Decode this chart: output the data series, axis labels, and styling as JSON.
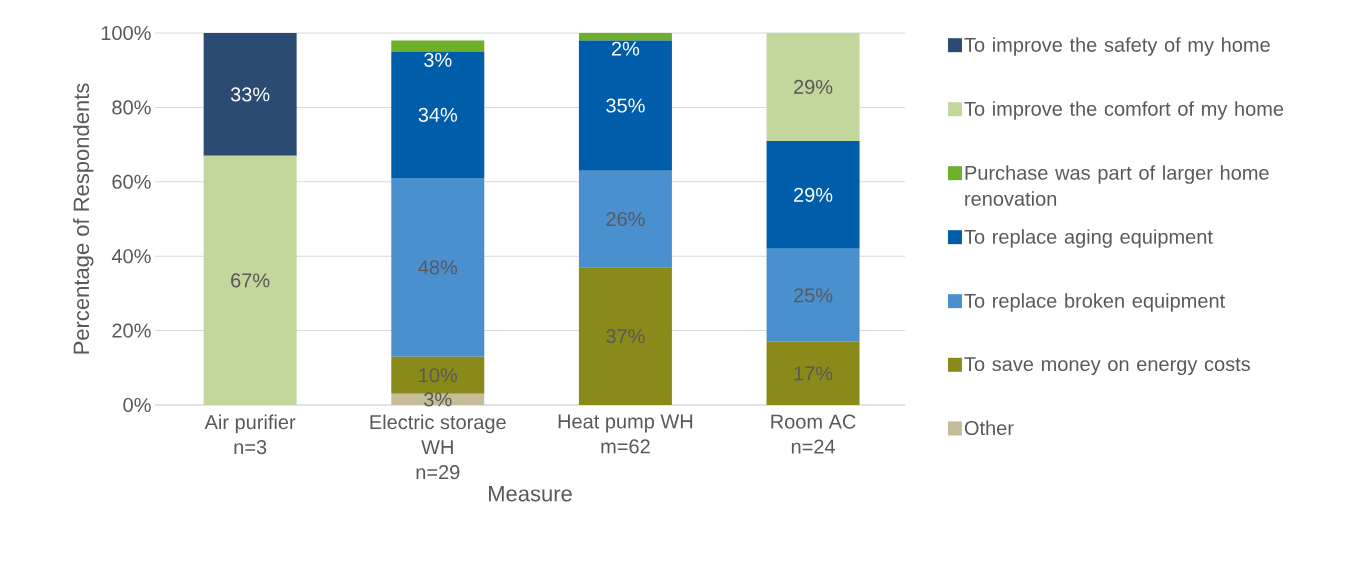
{
  "chart_data": {
    "type": "bar",
    "stacked": true,
    "xlabel": "Measure",
    "ylabel": "Percentage of Respondents",
    "categories": [
      "Air purifier\nn=3",
      "Electric storage\nWH\nn=29",
      "Heat pump WH\nm=62",
      "Room AC\nn=24"
    ],
    "ylim": [
      0,
      100
    ],
    "yticks": [
      {
        "value": 0,
        "label": "0%"
      },
      {
        "value": 20,
        "label": "20%"
      },
      {
        "value": 40,
        "label": "40%"
      },
      {
        "value": 60,
        "label": "60%"
      },
      {
        "value": 80,
        "label": "80%"
      },
      {
        "value": 100,
        "label": "100%"
      }
    ],
    "grid": "y",
    "legend": "right",
    "series": [
      {
        "name": "Other",
        "color": "#c4bd97",
        "values": [
          null,
          3,
          null,
          null
        ],
        "value_labels": [
          null,
          "3%",
          null,
          null
        ]
      },
      {
        "name": "To save money on energy costs",
        "color": "#8a8a1a",
        "values": [
          null,
          10,
          37,
          17
        ],
        "value_labels": [
          null,
          "10%",
          "37%",
          "17%"
        ]
      },
      {
        "name": "To replace broken equipment",
        "color": "#4a90cf",
        "values": [
          null,
          48,
          26,
          25
        ],
        "value_labels": [
          null,
          "48%",
          "26%",
          "25%"
        ]
      },
      {
        "name": "To replace aging equipment",
        "color": "#005daa",
        "values": [
          null,
          34,
          35,
          29
        ],
        "value_labels": [
          null,
          "34%",
          "35%",
          "29%"
        ]
      },
      {
        "name": "Purchase was part of larger home renovation",
        "color": "#6fb02b",
        "values": [
          null,
          3,
          2,
          null
        ],
        "value_labels": [
          null,
          "3%",
          "2%",
          null
        ]
      },
      {
        "name": "To improve the comfort of my home",
        "color": "#c3d69b",
        "values": [
          67,
          null,
          null,
          29
        ],
        "value_labels": [
          "67%",
          null,
          null,
          "29%"
        ]
      },
      {
        "name": "To improve the safety of my home",
        "color": "#2b4b73",
        "values": [
          33,
          null,
          null,
          null
        ],
        "value_labels": [
          "33%",
          null,
          null,
          null
        ]
      }
    ]
  }
}
